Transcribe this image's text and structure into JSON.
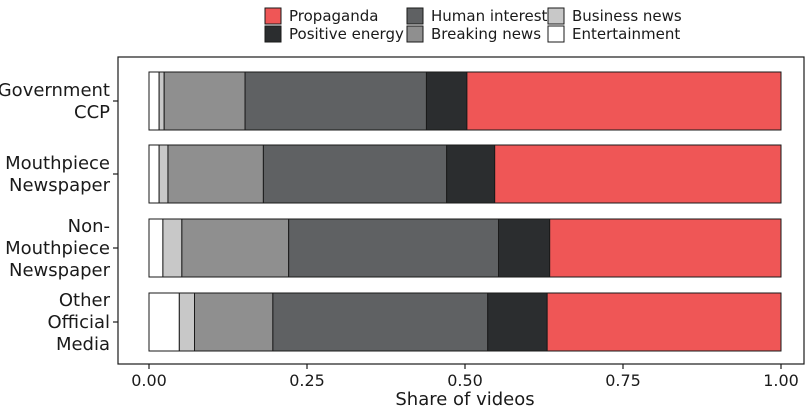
{
  "chart_data": {
    "type": "bar",
    "orientation": "horizontal",
    "stacked": true,
    "xlabel": "Share of videos",
    "ylabel": "",
    "xlim": [
      0,
      1
    ],
    "xticks": [
      "0.00",
      "0.25",
      "0.50",
      "0.75",
      "1.00"
    ],
    "xtick_values": [
      0,
      0.25,
      0.5,
      0.75,
      1.0
    ],
    "grid": false,
    "legend_position": "top",
    "categories": [
      {
        "lines": [
          "Government",
          "CCP"
        ]
      },
      {
        "lines": [
          "Mouthpiece",
          "Newspaper"
        ]
      },
      {
        "lines": [
          "Non-",
          "Mouthpiece",
          "Newspaper"
        ]
      },
      {
        "lines": [
          "Other",
          "Official",
          "Media"
        ]
      }
    ],
    "series": [
      {
        "name": "Entertainment",
        "color": "#ffffff",
        "values": [
          0.016,
          0.016,
          0.022,
          0.048
        ]
      },
      {
        "name": "Business news",
        "color": "#c8c8c8",
        "values": [
          0.008,
          0.014,
          0.03,
          0.024
        ]
      },
      {
        "name": "Breaking news",
        "color": "#8f8f8f",
        "values": [
          0.128,
          0.151,
          0.169,
          0.124
        ]
      },
      {
        "name": "Human interest",
        "color": "#5f6163",
        "values": [
          0.287,
          0.29,
          0.332,
          0.34
        ]
      },
      {
        "name": "Positive energy",
        "color": "#2b2d2f",
        "values": [
          0.064,
          0.076,
          0.081,
          0.094
        ]
      },
      {
        "name": "Propaganda",
        "color": "#ef5656",
        "values": [
          0.497,
          0.453,
          0.366,
          0.37
        ]
      }
    ],
    "legend_layout": [
      [
        "Propaganda",
        "Human interest",
        "Business news"
      ],
      [
        "Positive energy",
        "Breaking news",
        "Entertainment"
      ]
    ]
  }
}
